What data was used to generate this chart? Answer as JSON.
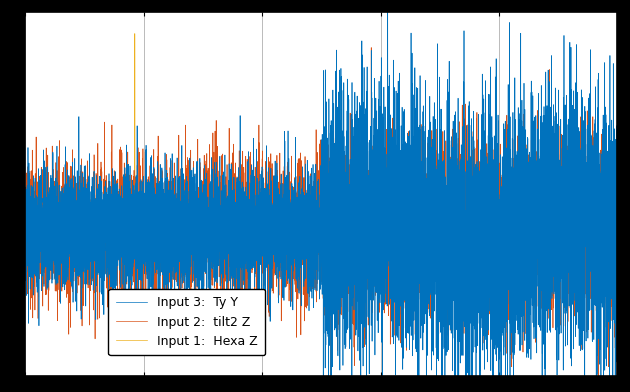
{
  "legend_labels": [
    "Input 1:  Hexa Z",
    "Input 2:  tilt2 Z",
    "Input 3:  Ty Y"
  ],
  "colors": [
    "#0072bd",
    "#d95319",
    "#edb120"
  ],
  "n_points": 10000,
  "seed": 42,
  "background_color": "#ffffff",
  "fig_facecolor": "#000000",
  "grid_color": "#b0b0b0",
  "figsize": [
    6.3,
    3.92
  ],
  "dpi": 100,
  "ylim": [
    -1.0,
    1.5
  ],
  "xlim": [
    0,
    1
  ]
}
